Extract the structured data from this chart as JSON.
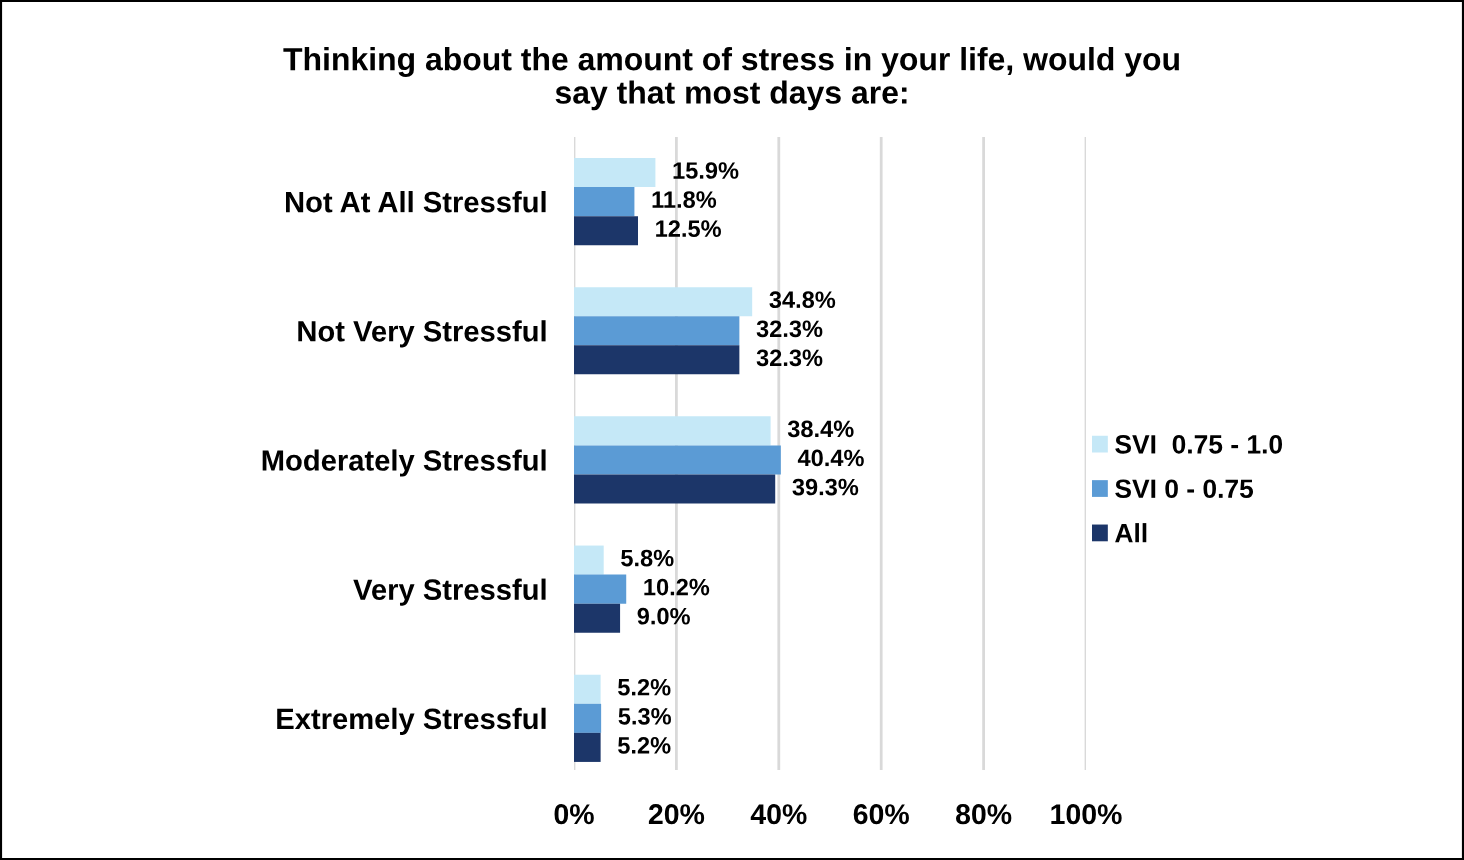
{
  "chart_data": {
    "type": "bar",
    "orientation": "horizontal",
    "title": "Thinking about the amount of stress in your life, would you\nsay that most days are:",
    "categories": [
      "Not At All Stressful",
      "Not Very Stressful",
      "Moderately Stressful",
      "Very Stressful",
      "Extremely Stressful"
    ],
    "series": [
      {
        "name": "SVI  0.75 - 1.0",
        "color": "#c5e8f7",
        "values": [
          15.9,
          34.8,
          38.4,
          5.8,
          5.2
        ],
        "value_labels": [
          "15.9%",
          "34.8%",
          "38.4%",
          "5.8%",
          "5.2%"
        ]
      },
      {
        "name": "SVI 0 - 0.75",
        "color": "#5b9bd5",
        "values": [
          11.8,
          32.3,
          40.4,
          10.2,
          5.3
        ],
        "value_labels": [
          "11.8%",
          "32.3%",
          "40.4%",
          "10.2%",
          "5.3%"
        ]
      },
      {
        "name": "All",
        "color": "#1c3669",
        "values": [
          12.5,
          32.3,
          39.3,
          9.0,
          5.2
        ],
        "value_labels": [
          "12.5%",
          "32.3%",
          "39.3%",
          "9.0%",
          "5.2%"
        ]
      }
    ],
    "xlim": [
      0,
      100
    ],
    "xticks": [
      {
        "value": 0,
        "label": "0%"
      },
      {
        "value": 20,
        "label": "20%"
      },
      {
        "value": 40,
        "label": "40%"
      },
      {
        "value": 60,
        "label": "60%"
      },
      {
        "value": 80,
        "label": "80%"
      },
      {
        "value": 100,
        "label": "100%"
      }
    ],
    "grid": "x",
    "legend": "right"
  }
}
